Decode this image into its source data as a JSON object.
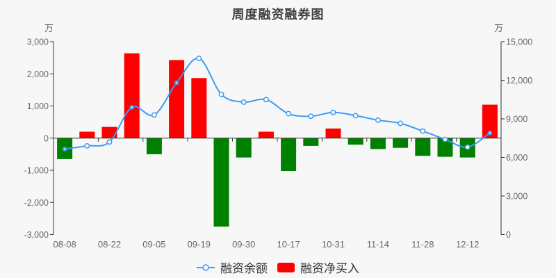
{
  "title": "周度融资融券图",
  "legend": {
    "items": [
      {
        "label": "融资余额",
        "type": "line"
      },
      {
        "label": "融资净买入",
        "type": "bar"
      }
    ]
  },
  "chart_data": {
    "type": "combo",
    "title": "周度融资融券图",
    "n_points": 20,
    "x_tick_labels": [
      "08-08",
      "08-22",
      "09-05",
      "09-19",
      "09-30",
      "10-17",
      "10-31",
      "11-14",
      "11-28",
      "12-12"
    ],
    "x_label_every": 2,
    "grid": false,
    "legend_position": "bottom",
    "left_axis": {
      "unit": "万",
      "range": [
        -3000,
        3000
      ],
      "tick_values": [
        3000,
        2000,
        1000,
        0,
        -1000,
        -2000,
        -3000
      ],
      "tick_labels": [
        "3,000",
        "2,000",
        "1,000",
        "0",
        "-1,000",
        "-2,000",
        "-3,000"
      ]
    },
    "right_axis": {
      "unit": "万",
      "range": [
        0,
        15000
      ],
      "tick_values": [
        15000,
        12000,
        9000,
        6000,
        3000,
        0
      ],
      "tick_labels": [
        "15,000",
        "12,000",
        "9,000",
        "6,000",
        "3,000",
        "0"
      ]
    },
    "series": [
      {
        "name": "融资净买入",
        "type": "bar",
        "axis": "left",
        "positive_color": "#ff0000",
        "negative_color": "#008000",
        "values": [
          -650,
          200,
          350,
          2640,
          -500,
          2430,
          1870,
          -2750,
          -600,
          200,
          -1020,
          -240,
          300,
          -200,
          -340,
          -300,
          -550,
          -580,
          -600,
          1040
        ]
      },
      {
        "name": "融资余额",
        "type": "line",
        "axis": "right",
        "color": "#3b9bf5",
        "smooth": true,
        "emphasized_points": [
          0,
          3,
          5,
          19
        ],
        "values": [
          6650,
          6900,
          7200,
          9900,
          9300,
          11800,
          13700,
          10900,
          10300,
          10500,
          9400,
          9200,
          9500,
          9250,
          8900,
          8650,
          8050,
          7400,
          6800,
          7900
        ]
      }
    ],
    "colors": {
      "background": "#f7f7f7",
      "axis_line": "#333333",
      "tick_label": "#666666",
      "title": "#404040",
      "legend_text": "#333333"
    }
  }
}
